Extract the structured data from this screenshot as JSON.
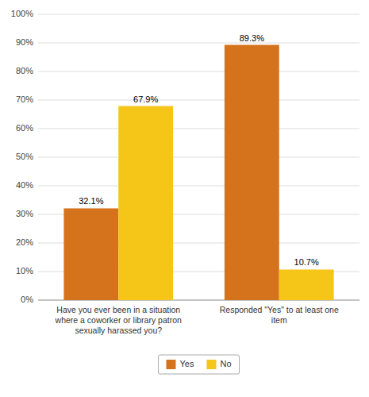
{
  "chart_data": {
    "type": "bar",
    "categories": [
      "Have you ever been in a situation\nwhere a coworker or library patron\nsexually harassed you?",
      "Responded \"Yes\" to at least one\nitem"
    ],
    "series": [
      {
        "name": "Yes",
        "color": "#D4731C",
        "values": [
          32.1,
          89.3
        ],
        "value_labels": [
          "32.1%",
          "89.3%"
        ]
      },
      {
        "name": "No",
        "color": "#F5C518",
        "values": [
          67.9,
          10.7
        ],
        "value_labels": [
          "67.9%",
          "10.7%"
        ]
      }
    ],
    "ylim": [
      0,
      100
    ],
    "yticks": [
      {
        "value": 0,
        "label": "0%"
      },
      {
        "value": 10,
        "label": "10%"
      },
      {
        "value": 20,
        "label": "20%"
      },
      {
        "value": 30,
        "label": "30%"
      },
      {
        "value": 40,
        "label": "40%"
      },
      {
        "value": 50,
        "label": "50%"
      },
      {
        "value": 60,
        "label": "60%"
      },
      {
        "value": 70,
        "label": "70%"
      },
      {
        "value": 80,
        "label": "80%"
      },
      {
        "value": 90,
        "label": "90%"
      },
      {
        "value": 100,
        "label": "100%"
      }
    ],
    "grid": true,
    "data_labels": true,
    "legend": "bottom"
  }
}
